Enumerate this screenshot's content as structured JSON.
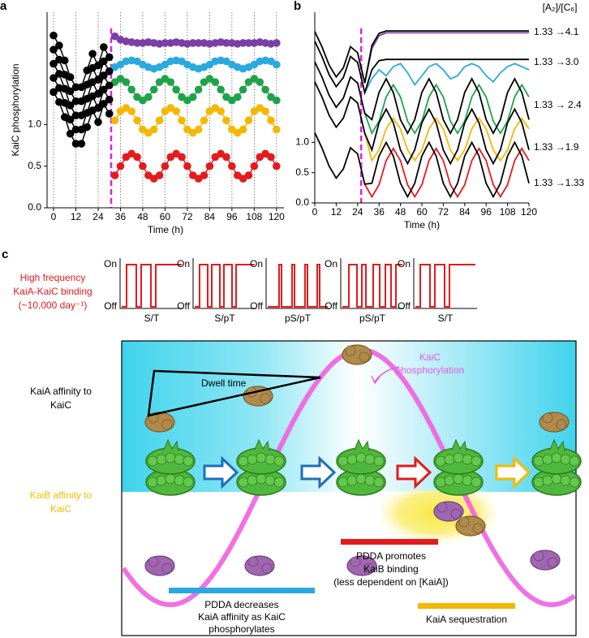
{
  "chart_data": [
    {
      "type": "line",
      "panel": "a",
      "markers": true,
      "grid": "x",
      "ylabel": "KaiC phosphorylation",
      "xlabel": "Time (h)",
      "xlim": [
        -3.5,
        124
      ],
      "ylim": [
        0,
        2.35
      ],
      "xticks": [
        0,
        12,
        24,
        36,
        48,
        60,
        72,
        84,
        96,
        108,
        120
      ],
      "yticks": [
        {
          "value": 0,
          "label": "0.0"
        },
        0.5,
        {
          "value": 1,
          "label": "1.0"
        }
      ],
      "vline": 31,
      "vline_color": "#e020e0",
      "x": [
        0,
        3,
        6,
        9,
        12,
        15,
        18,
        21,
        24,
        27,
        30,
        33,
        36,
        39,
        42,
        45,
        48,
        51,
        54,
        57,
        60,
        63,
        66,
        69,
        72,
        75,
        78,
        81,
        84,
        87,
        90,
        93,
        96,
        99,
        102,
        105,
        108,
        111,
        114,
        117,
        120
      ],
      "series": [
        {
          "color": "#7b3fa8",
          "values": [
            null,
            null,
            null,
            null,
            null,
            null,
            null,
            null,
            null,
            null,
            null,
            2.06,
            2.02,
            2.0,
            1.99,
            1.98,
            1.98,
            1.99,
            1.98,
            1.97,
            1.98,
            1.98,
            1.99,
            1.98,
            1.97,
            1.98,
            1.98,
            1.98,
            1.97,
            1.98,
            1.99,
            1.98,
            1.98,
            1.97,
            1.98,
            1.98,
            1.98,
            1.99,
            1.98,
            1.97,
            1.98
          ]
        },
        {
          "color": "#29a9e0",
          "values": [
            null,
            null,
            null,
            null,
            null,
            null,
            null,
            null,
            null,
            null,
            null,
            1.69,
            1.72,
            1.76,
            1.77,
            1.76,
            1.72,
            1.69,
            1.67,
            1.69,
            1.72,
            1.76,
            1.77,
            1.76,
            1.72,
            1.69,
            1.67,
            1.69,
            1.72,
            1.76,
            1.77,
            1.76,
            1.72,
            1.69,
            1.67,
            1.69,
            1.72,
            1.76,
            1.77,
            1.76,
            1.72
          ]
        },
        {
          "color": "#1fa34a",
          "values": [
            null,
            null,
            null,
            null,
            null,
            null,
            null,
            null,
            null,
            null,
            null,
            1.51,
            1.55,
            1.51,
            1.42,
            1.33,
            1.29,
            1.33,
            1.42,
            1.51,
            1.55,
            1.51,
            1.42,
            1.33,
            1.29,
            1.33,
            1.42,
            1.51,
            1.55,
            1.51,
            1.42,
            1.33,
            1.29,
            1.33,
            1.42,
            1.51,
            1.55,
            1.51,
            1.42,
            1.33,
            1.29
          ]
        },
        {
          "color": "#f5b800",
          "values": [
            null,
            null,
            null,
            null,
            null,
            null,
            null,
            null,
            null,
            null,
            null,
            1.05,
            1.16,
            1.2,
            1.16,
            1.05,
            0.94,
            0.9,
            0.94,
            1.05,
            1.16,
            1.2,
            1.16,
            1.05,
            0.94,
            0.9,
            0.94,
            1.05,
            1.16,
            1.2,
            1.16,
            1.05,
            0.94,
            0.9,
            0.94,
            1.05,
            1.16,
            1.2,
            1.16,
            1.05,
            0.94
          ]
        },
        {
          "color": "#e41a1c",
          "values": [
            null,
            null,
            null,
            null,
            null,
            null,
            null,
            null,
            null,
            null,
            null,
            0.39,
            0.5,
            0.61,
            0.65,
            0.61,
            0.5,
            0.39,
            0.35,
            0.39,
            0.5,
            0.61,
            0.65,
            0.61,
            0.5,
            0.39,
            0.35,
            0.39,
            0.5,
            0.61,
            0.65,
            0.61,
            0.5,
            0.39,
            0.35,
            0.39,
            0.5,
            0.61,
            0.65,
            0.61,
            0.5
          ]
        },
        {
          "color": "#000000",
          "values": [
            2.07,
            1.95,
            1.77,
            1.57,
            1.45,
            1.45,
            1.65,
            1.85,
            1.71,
            1.93,
            1.81,
            null,
            null,
            null,
            null,
            null,
            null,
            null,
            null,
            null,
            null,
            null,
            null,
            null,
            null,
            null,
            null,
            null,
            null,
            null,
            null,
            null,
            null,
            null,
            null,
            null,
            null,
            null,
            null,
            null,
            null
          ]
        },
        {
          "color": "#000000",
          "values": [
            1.9,
            1.78,
            1.6,
            1.4,
            1.28,
            1.28,
            1.48,
            1.68,
            1.54,
            1.76,
            1.64,
            null,
            null,
            null,
            null,
            null,
            null,
            null,
            null,
            null,
            null,
            null,
            null,
            null,
            null,
            null,
            null,
            null,
            null,
            null,
            null,
            null,
            null,
            null,
            null,
            null,
            null,
            null,
            null,
            null,
            null
          ]
        },
        {
          "color": "#000000",
          "values": [
            1.73,
            1.61,
            1.43,
            1.23,
            1.11,
            1.11,
            1.31,
            1.51,
            1.37,
            1.59,
            1.47,
            null,
            null,
            null,
            null,
            null,
            null,
            null,
            null,
            null,
            null,
            null,
            null,
            null,
            null,
            null,
            null,
            null,
            null,
            null,
            null,
            null,
            null,
            null,
            null,
            null,
            null,
            null,
            null,
            null,
            null
          ]
        },
        {
          "color": "#000000",
          "values": [
            1.56,
            1.44,
            1.26,
            1.06,
            0.94,
            0.94,
            1.14,
            1.34,
            1.2,
            1.42,
            1.3,
            null,
            null,
            null,
            null,
            null,
            null,
            null,
            null,
            null,
            null,
            null,
            null,
            null,
            null,
            null,
            null,
            null,
            null,
            null,
            null,
            null,
            null,
            null,
            null,
            null,
            null,
            null,
            null,
            null,
            null
          ]
        },
        {
          "color": "#000000",
          "values": [
            1.39,
            1.27,
            1.09,
            0.89,
            0.77,
            0.77,
            0.97,
            1.17,
            1.03,
            1.25,
            1.13,
            null,
            null,
            null,
            null,
            null,
            null,
            null,
            null,
            null,
            null,
            null,
            null,
            null,
            null,
            null,
            null,
            null,
            null,
            null,
            null,
            null,
            null,
            null,
            null,
            null,
            null,
            null,
            null,
            null,
            null
          ]
        }
      ]
    },
    {
      "type": "line",
      "panel": "b",
      "markers": false,
      "xlabel": "Time (h)",
      "xlim": [
        0,
        120
      ],
      "ylim": [
        0,
        3.15
      ],
      "xticks": [
        0,
        12,
        24,
        36,
        48,
        60,
        72,
        84,
        96,
        108,
        120
      ],
      "yticks": [
        {
          "value": 0,
          "label": "0.0"
        },
        0.5,
        {
          "value": 1,
          "label": "1.0"
        }
      ],
      "vline": 26,
      "vline_color": "#e020e0",
      "label_header": "[A₂]/[C₆]",
      "labels": [
        "1.33 →4.1",
        "1.33 →3.0",
        "1.33 → 2.4",
        "1.33 →1.9",
        "1.33 →1.33"
      ],
      "x": [
        0,
        4,
        8,
        12,
        16,
        20,
        24,
        28,
        32,
        36,
        40,
        44,
        48,
        52,
        56,
        60,
        64,
        68,
        72,
        76,
        80,
        84,
        88,
        92,
        96,
        100,
        104,
        108,
        112,
        116,
        120
      ],
      "series": [
        {
          "color": "#7b3fa8",
          "values": [
            null,
            null,
            null,
            null,
            null,
            null,
            null,
            1.98,
            2.55,
            2.76,
            2.81,
            2.81,
            2.81,
            2.81,
            2.81,
            2.81,
            2.81,
            2.81,
            2.81,
            2.81,
            2.81,
            2.81,
            2.81,
            2.81,
            2.81,
            2.81,
            2.81,
            2.81,
            2.81,
            2.81,
            2.81
          ]
        },
        {
          "color": "#000000",
          "values": [
            2.83,
            2.58,
            2.28,
            2.08,
            2.23,
            2.58,
            2.48,
            1.98,
            2.6,
            2.8,
            2.84,
            2.84,
            2.84,
            2.84,
            2.84,
            2.84,
            2.84,
            2.84,
            2.84,
            2.84,
            2.84,
            2.84,
            2.84,
            2.84,
            2.84,
            2.84,
            2.84,
            2.84,
            2.84,
            2.84,
            2.84
          ]
        },
        {
          "color": "#29a9e0",
          "values": [
            null,
            null,
            null,
            null,
            null,
            null,
            null,
            1.82,
            2.05,
            2.2,
            2.1,
            2.25,
            2.3,
            2.15,
            1.95,
            2.1,
            2.25,
            2.3,
            2.2,
            2.05,
            2.1,
            2.25,
            2.3,
            2.25,
            2.1,
            2.0,
            2.15,
            2.25,
            2.3,
            2.25,
            2.2
          ]
        },
        {
          "color": "#000000",
          "values": [
            2.67,
            2.42,
            2.12,
            1.92,
            2.07,
            2.42,
            2.32,
            1.82,
            2.2,
            2.35,
            2.37,
            2.37,
            2.37,
            2.37,
            2.37,
            2.37,
            2.37,
            2.37,
            2.37,
            2.37,
            2.37,
            2.37,
            2.37,
            2.37,
            2.37,
            2.37,
            2.37,
            2.37,
            2.37,
            2.37,
            2.37
          ]
        },
        {
          "color": "#1fa34a",
          "values": [
            null,
            null,
            null,
            null,
            null,
            null,
            null,
            1.48,
            1.15,
            1.35,
            1.75,
            1.95,
            1.75,
            1.35,
            1.15,
            1.35,
            1.75,
            1.95,
            1.75,
            1.35,
            1.15,
            1.35,
            1.75,
            1.95,
            1.75,
            1.35,
            1.15,
            1.35,
            1.75,
            1.95,
            1.75
          ]
        },
        {
          "color": "#000000",
          "values": [
            2.33,
            2.08,
            1.78,
            1.58,
            1.73,
            2.08,
            1.98,
            1.48,
            1.375,
            1.825,
            2.05,
            1.825,
            1.375,
            1.15,
            1.375,
            1.825,
            2.05,
            1.825,
            1.375,
            1.15,
            1.375,
            1.825,
            2.05,
            1.825,
            1.375,
            1.15,
            1.375,
            1.825,
            2.05,
            1.825,
            1.375
          ]
        },
        {
          "color": "#f5b800",
          "values": [
            null,
            null,
            null,
            null,
            null,
            null,
            null,
            1.15,
            0.7,
            0.875,
            1.225,
            1.4,
            1.225,
            0.875,
            0.7,
            0.875,
            1.225,
            1.4,
            1.225,
            0.875,
            0.7,
            0.875,
            1.225,
            1.4,
            1.225,
            0.875,
            0.7,
            0.875,
            1.225,
            1.4,
            1.225
          ]
        },
        {
          "color": "#000000",
          "values": [
            2.0,
            1.75,
            1.45,
            1.25,
            1.4,
            1.75,
            1.65,
            1.15,
            0.875,
            1.325,
            1.55,
            1.325,
            0.875,
            0.65,
            0.875,
            1.325,
            1.55,
            1.325,
            0.875,
            0.65,
            0.875,
            1.325,
            1.55,
            1.325,
            0.875,
            0.65,
            0.875,
            1.325,
            1.55,
            1.325,
            0.875
          ]
        },
        {
          "color": "#e41a1c",
          "values": [
            null,
            null,
            null,
            null,
            null,
            null,
            null,
            0.31,
            0.1,
            0.3,
            0.7,
            0.9,
            0.7,
            0.3,
            0.1,
            0.3,
            0.7,
            0.9,
            0.7,
            0.3,
            0.1,
            0.3,
            0.7,
            0.9,
            0.7,
            0.3,
            0.1,
            0.3,
            0.7,
            0.9,
            0.7
          ]
        },
        {
          "color": "#000000",
          "values": [
            1.16,
            0.91,
            0.61,
            0.41,
            0.56,
            0.91,
            0.81,
            0.31,
            0.325,
            0.775,
            1.0,
            0.775,
            0.325,
            0.1,
            0.325,
            0.775,
            1.0,
            0.775,
            0.325,
            0.1,
            0.325,
            0.775,
            1.0,
            0.775,
            0.325,
            0.1,
            0.325,
            0.775,
            1.0,
            0.775,
            0.325
          ]
        }
      ]
    }
  ],
  "diagram": {
    "panel": "c",
    "binding_title": [
      "High frequency",
      "KaiA-KaiC binding",
      "(~10,000 day⁻¹)"
    ],
    "on": "On",
    "off": "Off",
    "states": [
      "S/T",
      "S/pT",
      "pS/pT",
      "pS/pT",
      "S/T"
    ],
    "kaia_affinity": [
      "KaiA affinity to",
      "KaiC"
    ],
    "kaib_affinity": [
      "KaiB affinity to",
      "KaiC"
    ],
    "dwell": "Dwell time",
    "phosphorylation": [
      "KaiC",
      "phosphorylation"
    ],
    "note_decreases": [
      "PDDA decreases",
      "KaiA affinity as KaiC",
      "phosphorylates"
    ],
    "note_promotes": [
      "PDDA promotes",
      "KaiB binding",
      "(less dependent on [KaiA])"
    ],
    "note_sequestration": "KaiA sequestration"
  }
}
